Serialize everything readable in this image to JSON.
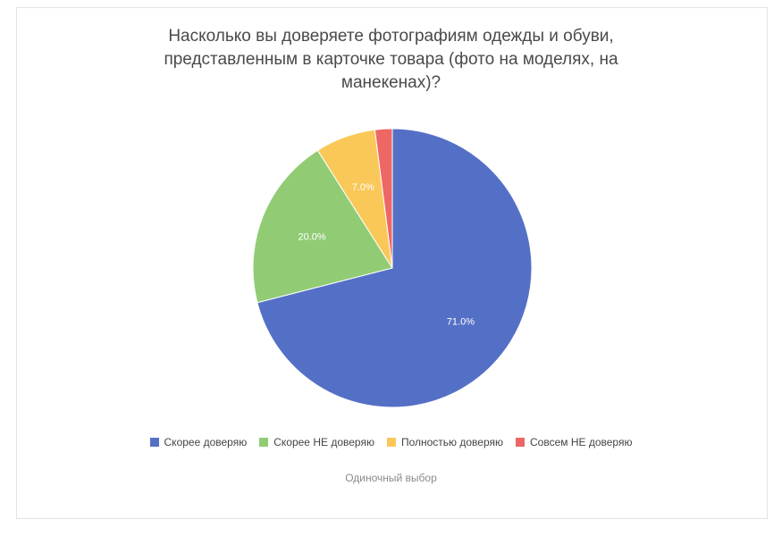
{
  "chart_data": {
    "type": "pie",
    "title_lines": [
      "Насколько вы доверяете фотографиям одежды и обуви,",
      "представленным в карточке товара (фото на моделях, на",
      "манекенах)?"
    ],
    "slices": [
      {
        "label": "Скорее доверяю",
        "value": 71.0,
        "display": "71.0%",
        "color": "#5470C6"
      },
      {
        "label": "Скорее НЕ доверяю",
        "value": 20.0,
        "display": "20.0%",
        "color": "#91CC75"
      },
      {
        "label": "Полностью доверяю",
        "value": 7.0,
        "display": "7.0%",
        "color": "#FAC858"
      },
      {
        "label": "Совсем НЕ доверяю",
        "value": 2.0,
        "display": "",
        "color": "#EE6666"
      }
    ],
    "legend_position": "bottom",
    "footnote": "Одиночный выбор"
  }
}
